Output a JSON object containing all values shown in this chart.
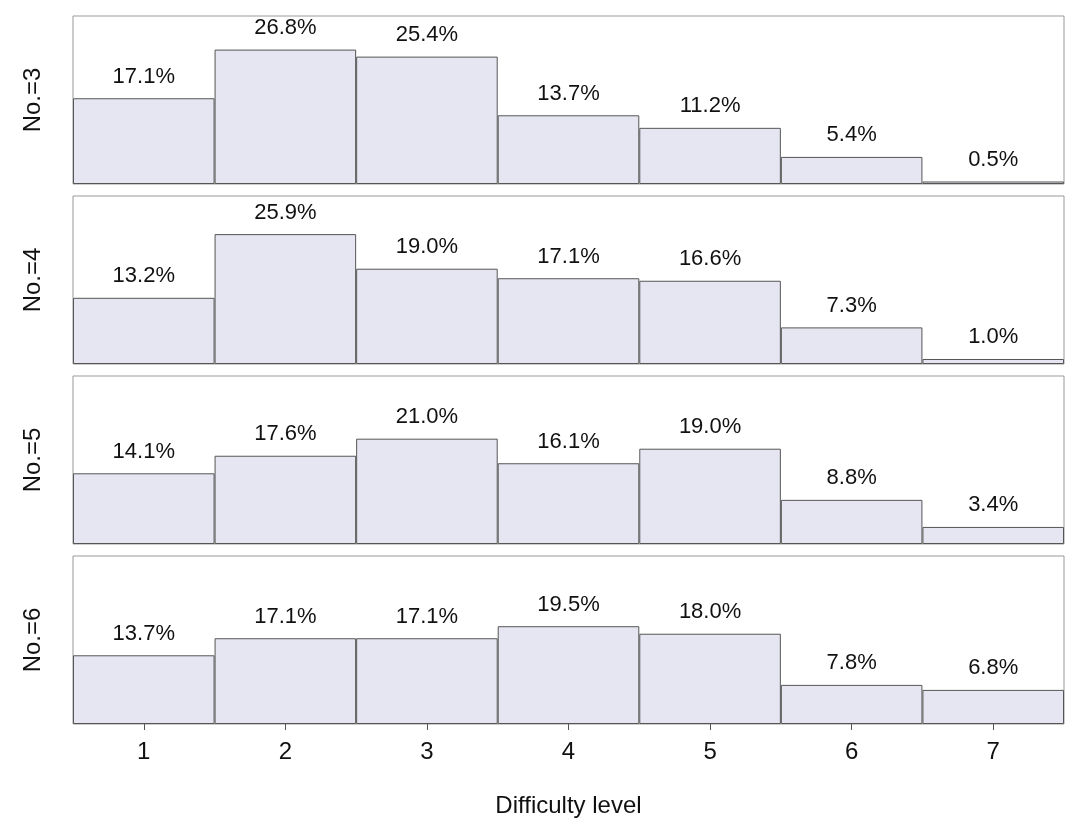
{
  "chart_data": [
    {
      "type": "bar",
      "ylabel": "No.=3",
      "categories": [
        "1",
        "2",
        "3",
        "4",
        "5",
        "6",
        "7"
      ],
      "values": [
        17.1,
        26.8,
        25.4,
        13.7,
        11.2,
        5.4,
        0.5
      ],
      "value_labels": [
        "17.1%",
        "26.8%",
        "25.4%",
        "13.7%",
        "11.2%",
        "5.4%",
        "0.5%"
      ],
      "color": "#e6e6f2",
      "tick_labels": false
    },
    {
      "type": "bar",
      "ylabel": "No.=4",
      "categories": [
        "1",
        "2",
        "3",
        "4",
        "5",
        "6",
        "7"
      ],
      "values": [
        13.2,
        25.9,
        19.0,
        17.1,
        16.6,
        7.3,
        1.0
      ],
      "value_labels": [
        "13.2%",
        "25.9%",
        "19.0%",
        "17.1%",
        "16.6%",
        "7.3%",
        "1.0%"
      ],
      "color": "#e6e6f2",
      "tick_labels": false
    },
    {
      "type": "bar",
      "ylabel": "No.=5",
      "categories": [
        "1",
        "2",
        "3",
        "4",
        "5",
        "6",
        "7"
      ],
      "values": [
        14.1,
        17.6,
        21.0,
        16.1,
        19.0,
        8.8,
        3.4
      ],
      "value_labels": [
        "14.1%",
        "17.6%",
        "21.0%",
        "16.1%",
        "19.0%",
        "8.8%",
        "3.4%"
      ],
      "color": "#e6e6f2",
      "tick_labels": false
    },
    {
      "type": "bar",
      "ylabel": "No.=6",
      "xlabel": "Difficulty level",
      "categories": [
        "1",
        "2",
        "3",
        "4",
        "5",
        "6",
        "7"
      ],
      "values": [
        13.7,
        17.1,
        17.1,
        19.5,
        18.0,
        7.8,
        6.8
      ],
      "value_labels": [
        "13.7%",
        "17.1%",
        "17.1%",
        "19.5%",
        "18.0%",
        "7.8%",
        "6.8%"
      ],
      "color": "#e6e6f2",
      "tick_labels": "x"
    }
  ]
}
